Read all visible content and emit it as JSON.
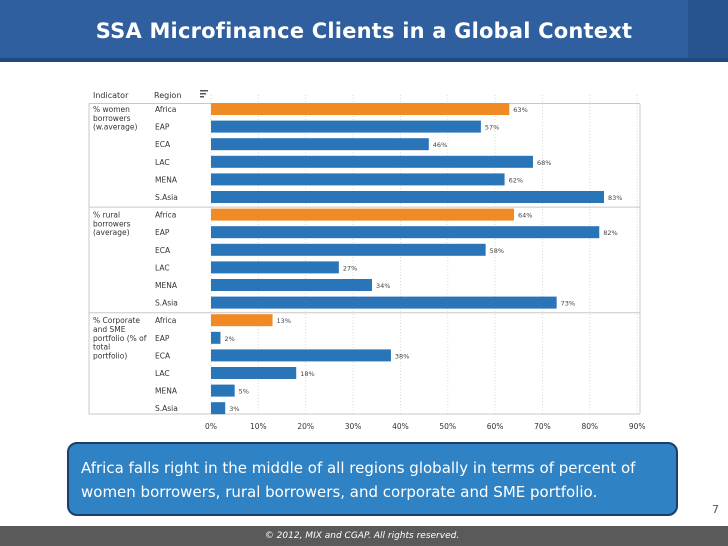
{
  "slide": {
    "title": "SSA Microfinance Clients in a Global Context",
    "callout": "Africa falls right in the middle of all regions globally in terms of percent of women borrowers, rural borrowers, and corporate and SME portfolio.",
    "page_number": "7",
    "footer": "© 2012, MIX and CGAP. All rights reserved."
  },
  "colors": {
    "title_bar": "#2f5f9e",
    "highlight_bar": "#f08a24",
    "bar": "#2a75b8",
    "callout_bg": "#2f82c4"
  },
  "chart_data": {
    "type": "bar",
    "orientation": "horizontal",
    "header_indicator": "Indicator",
    "header_region": "Region",
    "sort_icon": "sort-icon",
    "xlim": [
      0,
      90
    ],
    "ticks": [
      0,
      10,
      20,
      30,
      40,
      50,
      60,
      70,
      80,
      90
    ],
    "tick_labels": [
      "0%",
      "10%",
      "20%",
      "30%",
      "40%",
      "50%",
      "60%",
      "70%",
      "80%",
      "90%"
    ],
    "highlight_region": "Africa",
    "groups": [
      {
        "indicator": [
          "% women",
          "borrowers",
          "(w.average)"
        ],
        "regions": [
          "Africa",
          "EAP",
          "ECA",
          "LAC",
          "MENA",
          "S.Asia"
        ],
        "values": [
          63,
          57,
          46,
          68,
          62,
          83
        ],
        "labels": [
          "63%",
          "57%",
          "46%",
          "68%",
          "62%",
          "83%"
        ]
      },
      {
        "indicator": [
          "% rural",
          "borrowers",
          "(average)"
        ],
        "regions": [
          "Africa",
          "EAP",
          "ECA",
          "LAC",
          "MENA",
          "S.Asia"
        ],
        "values": [
          64,
          82,
          58,
          27,
          34,
          73
        ],
        "labels": [
          "64%",
          "82%",
          "58%",
          "27%",
          "34%",
          "73%"
        ]
      },
      {
        "indicator": [
          "% Corporate",
          "and SME",
          "portfolio (% of",
          "total",
          "portfolio)"
        ],
        "regions": [
          "Africa",
          "EAP",
          "ECA",
          "LAC",
          "MENA",
          "S.Asia"
        ],
        "values": [
          13,
          2,
          38,
          18,
          5,
          3
        ],
        "labels": [
          "13%",
          "2%",
          "38%",
          "18%",
          "5%",
          "3%"
        ]
      }
    ]
  }
}
